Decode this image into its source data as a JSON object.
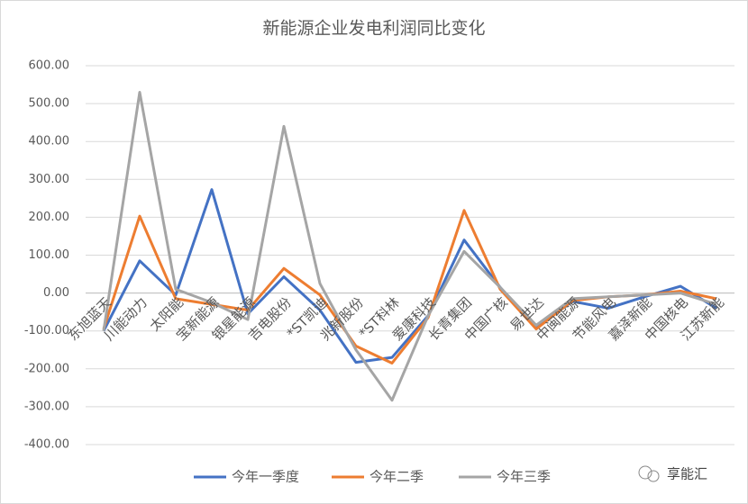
{
  "chart_data": {
    "type": "line",
    "title": "新能源企业发电利润同比变化",
    "categories": [
      "东旭蓝天",
      "川能动力",
      "太阳能",
      "宝新能源",
      "银星能源",
      "吉电股份",
      "*ST凯迪",
      "兆新股份",
      "*ST科林",
      "爱康科技",
      "长青集团",
      "中国广核",
      "易世达",
      "中闽能源",
      "节能风电",
      "嘉泽新能",
      "中国核电",
      "江苏新能"
    ],
    "series": [
      {
        "name": "今年一季度",
        "color": "#4472c4",
        "values": [
          -100,
          85,
          -5,
          273,
          -55,
          43,
          -45,
          -183,
          -170,
          -60,
          140,
          15,
          -90,
          -22,
          -40,
          -10,
          18,
          -40
        ]
      },
      {
        "name": "今年二季",
        "color": "#ed7d31",
        "values": [
          -95,
          203,
          -15,
          -30,
          -45,
          65,
          -5,
          -140,
          -185,
          -65,
          218,
          10,
          -95,
          -20,
          -10,
          -5,
          5,
          -15
        ]
      },
      {
        "name": "今年三季",
        "color": "#a5a5a5",
        "values": [
          -100,
          530,
          10,
          -25,
          -70,
          440,
          25,
          -150,
          -283,
          -60,
          110,
          15,
          -85,
          -15,
          -10,
          -5,
          0,
          -30
        ]
      }
    ],
    "ylim": [
      -400,
      600
    ],
    "yticks": [
      {
        "value": -400,
        "label": "-400.00"
      },
      {
        "value": -300,
        "label": "-300.00"
      },
      {
        "value": -200,
        "label": "-200.00"
      },
      {
        "value": -100,
        "label": "-100.00"
      },
      {
        "value": 0,
        "label": "0.00"
      },
      {
        "value": 100,
        "label": "100.00"
      },
      {
        "value": 200,
        "label": "200.00"
      },
      {
        "value": 300,
        "label": "300.00"
      },
      {
        "value": 400,
        "label": "400.00"
      },
      {
        "value": 500,
        "label": "500.00"
      },
      {
        "value": 600,
        "label": "600.00"
      }
    ],
    "grid": true,
    "watermark": "享能汇"
  }
}
